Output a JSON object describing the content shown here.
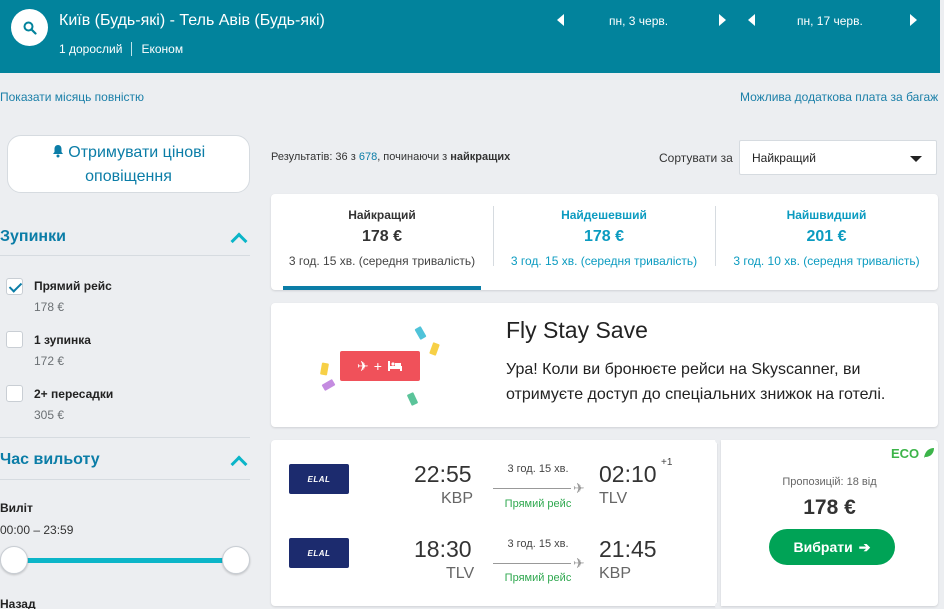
{
  "header": {
    "route": "Київ (Будь-які) - Тель Авів (Будь-які)",
    "passengers": "1 дорослий",
    "cabin": "Економ",
    "depart_date": "пн, 3 черв.",
    "return_date": "пн, 17 черв."
  },
  "links": {
    "show_month": "Показати місяць повністю",
    "baggage_fee": "Можлива додаткова плата за багаж"
  },
  "sidebar": {
    "alerts_line1": "Отримувати цінові",
    "alerts_line2": "оповіщення",
    "stops_title": "Зупинки",
    "stops": [
      {
        "label": "Прямий рейс",
        "price": "178 €",
        "checked": true
      },
      {
        "label": "1 зупинка",
        "price": "172 €",
        "checked": false
      },
      {
        "label": "2+ пересадки",
        "price": "305 €",
        "checked": false
      }
    ],
    "departure_title": "Час вильоту",
    "outbound_label": "Виліт",
    "outbound_range": "00:00 – 23:59",
    "return_label": "Назад"
  },
  "results": {
    "count_prefix": "Результатів: 36 з ",
    "count_total": "678",
    "count_suffix": ", починаючи з ",
    "count_bold": "найкращих",
    "sort_label": "Сортувати за",
    "sort_value": "Найкращий"
  },
  "tabs": [
    {
      "title": "Найкращий",
      "price": "178 €",
      "duration": "3 год. 15 хв. (середня тривалість)"
    },
    {
      "title": "Найдешевший",
      "price": "178 €",
      "duration": "3 год. 15 хв. (середня тривалість)"
    },
    {
      "title": "Найшвидший",
      "price": "201 €",
      "duration": "3 год. 10 хв. (середня тривалість)"
    }
  ],
  "promo": {
    "title": "Fly Stay Save",
    "text": "Ура! Коли ви бронюєте рейси на Skyscanner, ви отримуєте доступ до спеціальних знижок на готелі.",
    "badge_plus": "+"
  },
  "flight": {
    "airline_logo_text": "ELAL",
    "outbound": {
      "dep_time": "22:55",
      "dep_code": "KBP",
      "arr_time": "02:10",
      "arr_code": "TLV",
      "day_offset": "+1",
      "duration": "3 год. 15 хв.",
      "stops": "Прямий рейс"
    },
    "inbound": {
      "dep_time": "18:30",
      "dep_code": "TLV",
      "arr_time": "21:45",
      "arr_code": "KBP",
      "duration": "3 год. 15 хв.",
      "stops": "Прямий рейс"
    },
    "eco": "ECO",
    "offers": "Пропозицій: 18 від",
    "price": "178 €",
    "select": "Вибрати"
  },
  "colors": {
    "header_bg": "#02839c",
    "accent": "#0b7da7",
    "eco_green": "#3cb449",
    "button_green": "#00a356",
    "promo_red": "#f0515a"
  }
}
